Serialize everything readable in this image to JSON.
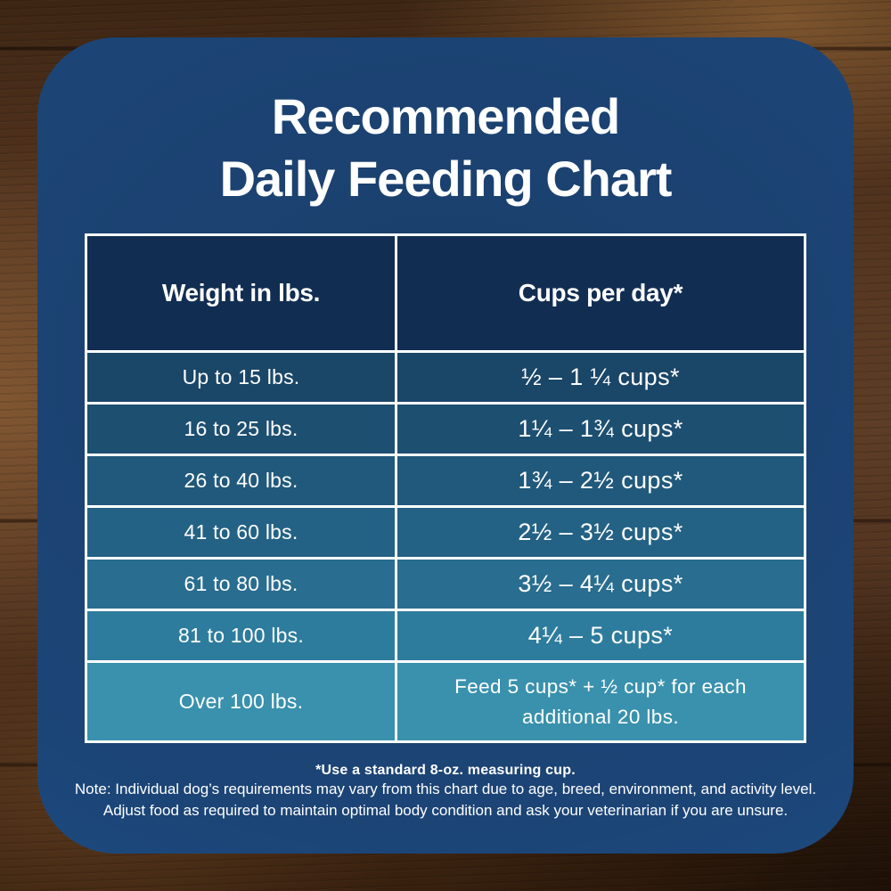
{
  "title": {
    "line1": "Recommended",
    "line2": "Daily Feeding Chart"
  },
  "table": {
    "headers": [
      "Weight in lbs.",
      "Cups per day*"
    ],
    "rows": [
      {
        "weight": "Up to 15 lbs.",
        "cups": "½ – 1 ¼ cups*",
        "bg": "#1a4668",
        "tall": false
      },
      {
        "weight": "16 to 25 lbs.",
        "cups": "1¼ – 1¾ cups*",
        "bg": "#1d4f71",
        "tall": false
      },
      {
        "weight": "26 to 40 lbs.",
        "cups": "1¾ – 2½ cups*",
        "bg": "#20597b",
        "tall": false
      },
      {
        "weight": "41 to 60 lbs.",
        "cups": "2½ – 3½ cups*",
        "bg": "#246285",
        "tall": false
      },
      {
        "weight": "61 to 80 lbs.",
        "cups": "3½ – 4¼ cups*",
        "bg": "#296d90",
        "tall": false
      },
      {
        "weight": "81 to 100 lbs.",
        "cups": "4¼ – 5 cups*",
        "bg": "#2e7c9d",
        "tall": false
      },
      {
        "weight": "Over 100 lbs.",
        "cups": "Feed 5 cups* + ½ cup* for each additional 20 lbs.",
        "bg": "#3991ad",
        "tall": true
      }
    ]
  },
  "footnotes": {
    "cup": "*Use a standard 8-oz. measuring cup.",
    "note1": "Note: Individual dog’s requirements may vary from this chart due to age, breed, environment, and activity level.",
    "note2": "Adjust food as required to maintain optimal body condition and ask your veterinarian if you are unsure."
  },
  "colors": {
    "card": "#1c4577",
    "header_bg": "#112e52",
    "table_border": "#ffffff",
    "text": "#ffffff",
    "wood_base": "#54371f"
  },
  "chart_data": {
    "type": "table",
    "title": "Recommended Daily Feeding Chart",
    "columns": [
      "Weight in lbs.",
      "Cups per day*"
    ],
    "rows": [
      [
        "Up to 15 lbs.",
        "½ – 1 ¼ cups*"
      ],
      [
        "16 to 25 lbs.",
        "1¼ – 1¾ cups*"
      ],
      [
        "26 to 40 lbs.",
        "1¾ – 2½ cups*"
      ],
      [
        "41 to 60 lbs.",
        "2½ – 3½ cups*"
      ],
      [
        "61 to 80 lbs.",
        "3½ – 4¼ cups*"
      ],
      [
        "81 to 100 lbs.",
        "4¼ – 5 cups*"
      ],
      [
        "Over 100 lbs.",
        "Feed 5 cups* + ½ cup* for each additional 20 lbs."
      ]
    ]
  }
}
